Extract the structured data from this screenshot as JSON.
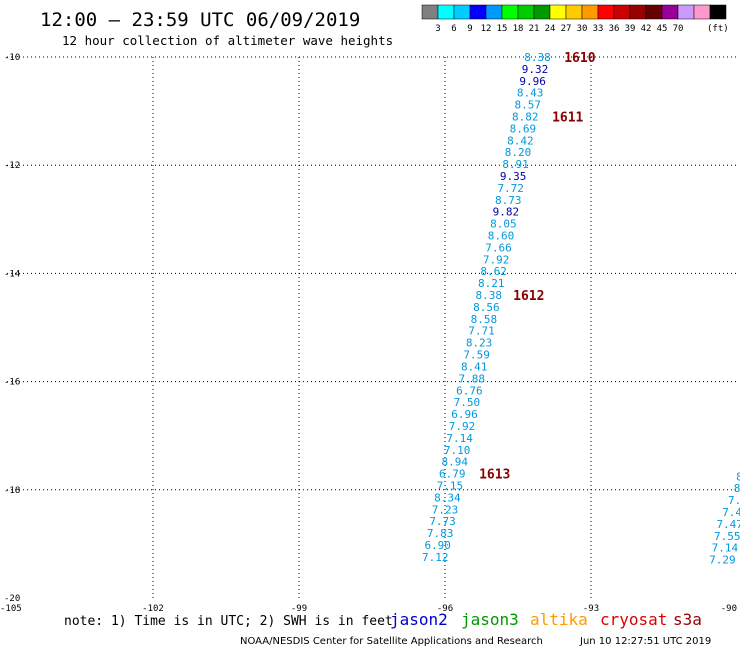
{
  "header": {
    "title": "12:00 – 23:59 UTC 06/09/2019",
    "subtitle": "12 hour collection of altimeter wave heights"
  },
  "colorbar": {
    "colors": [
      "#808080",
      "#00ffff",
      "#00ccff",
      "#0000ff",
      "#0099ff",
      "#00ff00",
      "#00cc00",
      "#009900",
      "#ffff00",
      "#ffcc00",
      "#ff9900",
      "#ff0000",
      "#cc0000",
      "#990000",
      "#660000",
      "#990099",
      "#cc99ff",
      "#ff99cc",
      "#000000"
    ],
    "labels": [
      "3",
      "6",
      "9",
      "12",
      "15",
      "18",
      "21",
      "24",
      "27",
      "30",
      "33",
      "36",
      "39",
      "42",
      "45",
      "70"
    ],
    "unit": "(ft)"
  },
  "footer": {
    "note": "note: 1) Time is in UTC; 2) SWH is in feet",
    "credit": "NOAA/NESDIS Center for Satellite Applications and Research",
    "timestamp": "Jun 10 12:27:51 UTC 2019"
  },
  "legend": [
    {
      "name": "jason2",
      "color": "#0000cc"
    },
    {
      "name": "jason3",
      "color": "#009900"
    },
    {
      "name": "altika",
      "color": "#ff9900"
    },
    {
      "name": "cryosat",
      "color": "#dd0000"
    },
    {
      "name": "s3a",
      "color": "#990000"
    }
  ],
  "chart_data": {
    "type": "scatter",
    "title": "12:00 – 23:59 UTC 06/09/2019",
    "xlim": [
      -105,
      -90
    ],
    "ylim": [
      -20,
      -10
    ],
    "xticks": [
      -105,
      -102,
      -99,
      -96,
      -93,
      -90
    ],
    "xtick_labels": [
      "-105",
      "-102",
      "-99",
      "-96",
      "-93",
      "-90"
    ],
    "yticks": [
      -10,
      -12,
      -14,
      -16,
      -18,
      -20
    ],
    "ytick_labels": [
      "-10",
      "-12",
      "-14",
      "-16",
      "-18",
      "-20"
    ],
    "grid": true,
    "colors": {
      "light": "#0099dd",
      "dark": "#0000aa",
      "time": "#880000"
    },
    "series": [
      {
        "points": [
          {
            "x": -94.1,
            "y": -10.0,
            "label": "8.38",
            "c": "light"
          },
          {
            "x": -94.15,
            "y": -10.22,
            "label": "9.32",
            "c": "dark"
          },
          {
            "x": -94.2,
            "y": -10.44,
            "label": "9.96",
            "c": "dark"
          },
          {
            "x": -94.25,
            "y": -10.66,
            "label": "8.43",
            "c": "light"
          },
          {
            "x": -94.3,
            "y": -10.88,
            "label": "8.57",
            "c": "light"
          },
          {
            "x": -94.35,
            "y": -11.1,
            "label": "8.82",
            "c": "light"
          },
          {
            "x": -94.4,
            "y": -11.32,
            "label": "8.69",
            "c": "light"
          },
          {
            "x": -94.45,
            "y": -11.54,
            "label": "8.42",
            "c": "light"
          },
          {
            "x": -94.5,
            "y": -11.76,
            "label": "8.20",
            "c": "light"
          },
          {
            "x": -94.55,
            "y": -11.98,
            "label": "8.91",
            "c": "light"
          },
          {
            "x": -94.6,
            "y": -12.2,
            "label": "9.35",
            "c": "dark"
          },
          {
            "x": -94.65,
            "y": -12.42,
            "label": "7.72",
            "c": "light"
          },
          {
            "x": -94.7,
            "y": -12.64,
            "label": "8.73",
            "c": "light"
          },
          {
            "x": -94.75,
            "y": -12.86,
            "label": "9.82",
            "c": "dark"
          },
          {
            "x": -94.8,
            "y": -13.08,
            "label": "8.05",
            "c": "light"
          },
          {
            "x": -94.85,
            "y": -13.3,
            "label": "8.60",
            "c": "light"
          },
          {
            "x": -94.9,
            "y": -13.52,
            "label": "7.66",
            "c": "light"
          },
          {
            "x": -94.95,
            "y": -13.74,
            "label": "7.92",
            "c": "light"
          },
          {
            "x": -95.0,
            "y": -13.96,
            "label": "8.62",
            "c": "light"
          },
          {
            "x": -95.05,
            "y": -14.18,
            "label": "8.21",
            "c": "light"
          },
          {
            "x": -95.1,
            "y": -14.4,
            "label": "8.38",
            "c": "light"
          },
          {
            "x": -95.15,
            "y": -14.62,
            "label": "8.56",
            "c": "light"
          },
          {
            "x": -95.2,
            "y": -14.84,
            "label": "8.58",
            "c": "light"
          },
          {
            "x": -95.25,
            "y": -15.06,
            "label": "7.71",
            "c": "light"
          },
          {
            "x": -95.3,
            "y": -15.28,
            "label": "8.23",
            "c": "light"
          },
          {
            "x": -95.35,
            "y": -15.5,
            "label": "7.59",
            "c": "light"
          },
          {
            "x": -95.4,
            "y": -15.72,
            "label": "8.41",
            "c": "light"
          },
          {
            "x": -95.45,
            "y": -15.94,
            "label": "7.88",
            "c": "light"
          },
          {
            "x": -95.5,
            "y": -16.16,
            "label": "6.76",
            "c": "light"
          },
          {
            "x": -95.55,
            "y": -16.38,
            "label": "7.50",
            "c": "light"
          },
          {
            "x": -95.6,
            "y": -16.6,
            "label": "6.96",
            "c": "light"
          },
          {
            "x": -95.65,
            "y": -16.82,
            "label": "7.92",
            "c": "light"
          },
          {
            "x": -95.7,
            "y": -17.04,
            "label": "7.14",
            "c": "light"
          },
          {
            "x": -95.75,
            "y": -17.26,
            "label": "7.10",
            "c": "light"
          },
          {
            "x": -95.8,
            "y": -17.48,
            "label": "8.94",
            "c": "light"
          },
          {
            "x": -95.85,
            "y": -17.7,
            "label": "6.79",
            "c": "light"
          },
          {
            "x": -95.9,
            "y": -17.92,
            "label": "7.15",
            "c": "light"
          },
          {
            "x": -95.95,
            "y": -18.14,
            "label": "8.34",
            "c": "light"
          },
          {
            "x": -96.0,
            "y": -18.36,
            "label": "7.23",
            "c": "light"
          },
          {
            "x": -96.05,
            "y": -18.58,
            "label": "7.73",
            "c": "light"
          },
          {
            "x": -96.1,
            "y": -18.8,
            "label": "7.83",
            "c": "light"
          },
          {
            "x": -96.15,
            "y": -19.02,
            "label": "6.90",
            "c": "light"
          },
          {
            "x": -96.2,
            "y": -19.24,
            "label": "7.12",
            "c": "light"
          }
        ]
      },
      {
        "points": [
          {
            "x": -89.95,
            "y": -17.75,
            "label": "8",
            "c": "light"
          },
          {
            "x": -90.0,
            "y": -17.97,
            "label": "8",
            "c": "light"
          },
          {
            "x": -90.05,
            "y": -18.19,
            "label": "7.",
            "c": "light"
          },
          {
            "x": -90.1,
            "y": -18.41,
            "label": "7.4",
            "c": "light"
          },
          {
            "x": -90.15,
            "y": -18.63,
            "label": "7.47",
            "c": "light"
          },
          {
            "x": -90.2,
            "y": -18.85,
            "label": "7.55",
            "c": "light"
          },
          {
            "x": -90.25,
            "y": -19.07,
            "label": "7.14",
            "c": "light"
          },
          {
            "x": -90.3,
            "y": -19.29,
            "label": "7.29",
            "c": "light"
          }
        ]
      }
    ],
    "time_labels": [
      {
        "x": -93.55,
        "y": -10.0,
        "label": "1610"
      },
      {
        "x": -93.8,
        "y": -11.1,
        "label": "1611"
      },
      {
        "x": -94.6,
        "y": -14.4,
        "label": "1612"
      },
      {
        "x": -95.3,
        "y": -17.7,
        "label": "1613"
      }
    ]
  }
}
